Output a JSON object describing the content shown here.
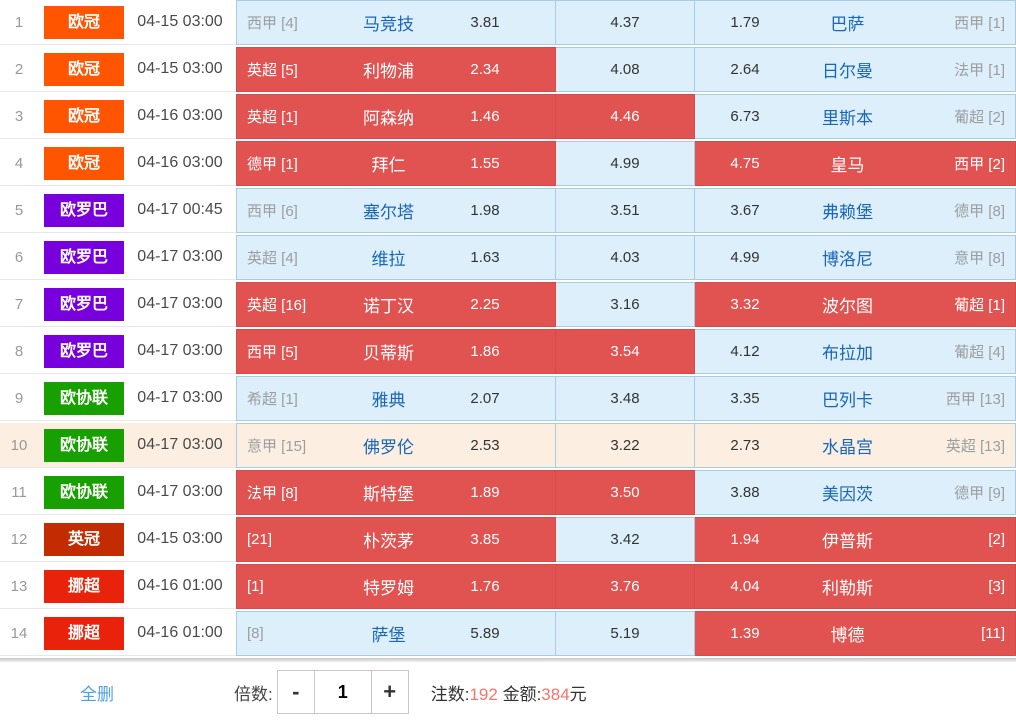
{
  "colors": {
    "leagues": {
      "欧冠": "#FF5400",
      "欧罗巴": "#7700DD",
      "欧协联": "#18A000",
      "英冠": "#C32B00",
      "挪超": "#E8220B"
    },
    "cell_default": "#DDEFFB",
    "cell_selected": "#E05351",
    "row_highlight": "#FCEFE2",
    "team_link_blue": "#1A66B8",
    "value_red": "#F5756B"
  },
  "rows": [
    {
      "num": "1",
      "league": "欧冠",
      "time": "04-15 03:00",
      "home_rank": "西甲 [4]",
      "home_team": "马竞技",
      "home_odds": "3.81",
      "draw_odds": "4.37",
      "away_odds": "1.79",
      "away_team": "巴萨",
      "away_rank": "西甲 [1]",
      "sel_home": false,
      "sel_draw": false,
      "sel_away": false,
      "highlight": false
    },
    {
      "num": "2",
      "league": "欧冠",
      "time": "04-15 03:00",
      "home_rank": "英超 [5]",
      "home_team": "利物浦",
      "home_odds": "2.34",
      "draw_odds": "4.08",
      "away_odds": "2.64",
      "away_team": "日尔曼",
      "away_rank": "法甲 [1]",
      "sel_home": true,
      "sel_draw": false,
      "sel_away": false,
      "highlight": false
    },
    {
      "num": "3",
      "league": "欧冠",
      "time": "04-16 03:00",
      "home_rank": "英超 [1]",
      "home_team": "阿森纳",
      "home_odds": "1.46",
      "draw_odds": "4.46",
      "away_odds": "6.73",
      "away_team": "里斯本",
      "away_rank": "葡超 [2]",
      "sel_home": true,
      "sel_draw": true,
      "sel_away": false,
      "highlight": false
    },
    {
      "num": "4",
      "league": "欧冠",
      "time": "04-16 03:00",
      "home_rank": "德甲 [1]",
      "home_team": "拜仁",
      "home_odds": "1.55",
      "draw_odds": "4.99",
      "away_odds": "4.75",
      "away_team": "皇马",
      "away_rank": "西甲 [2]",
      "sel_home": true,
      "sel_draw": false,
      "sel_away": true,
      "highlight": false
    },
    {
      "num": "5",
      "league": "欧罗巴",
      "time": "04-17 00:45",
      "home_rank": "西甲 [6]",
      "home_team": "塞尔塔",
      "home_odds": "1.98",
      "draw_odds": "3.51",
      "away_odds": "3.67",
      "away_team": "弗赖堡",
      "away_rank": "德甲 [8]",
      "sel_home": false,
      "sel_draw": false,
      "sel_away": false,
      "highlight": false
    },
    {
      "num": "6",
      "league": "欧罗巴",
      "time": "04-17 03:00",
      "home_rank": "英超 [4]",
      "home_team": "维拉",
      "home_odds": "1.63",
      "draw_odds": "4.03",
      "away_odds": "4.99",
      "away_team": "博洛尼",
      "away_rank": "意甲 [8]",
      "sel_home": false,
      "sel_draw": false,
      "sel_away": false,
      "highlight": false
    },
    {
      "num": "7",
      "league": "欧罗巴",
      "time": "04-17 03:00",
      "home_rank": "英超 [16]",
      "home_team": "诺丁汉",
      "home_odds": "2.25",
      "draw_odds": "3.16",
      "away_odds": "3.32",
      "away_team": "波尔图",
      "away_rank": "葡超 [1]",
      "sel_home": true,
      "sel_draw": false,
      "sel_away": true,
      "highlight": false
    },
    {
      "num": "8",
      "league": "欧罗巴",
      "time": "04-17 03:00",
      "home_rank": "西甲 [5]",
      "home_team": "贝蒂斯",
      "home_odds": "1.86",
      "draw_odds": "3.54",
      "away_odds": "4.12",
      "away_team": "布拉加",
      "away_rank": "葡超 [4]",
      "sel_home": true,
      "sel_draw": true,
      "sel_away": false,
      "highlight": false
    },
    {
      "num": "9",
      "league": "欧协联",
      "time": "04-17 03:00",
      "home_rank": "希超 [1]",
      "home_team": "雅典",
      "home_odds": "2.07",
      "draw_odds": "3.48",
      "away_odds": "3.35",
      "away_team": "巴列卡",
      "away_rank": "西甲 [13]",
      "sel_home": false,
      "sel_draw": false,
      "sel_away": false,
      "highlight": false
    },
    {
      "num": "10",
      "league": "欧协联",
      "time": "04-17 03:00",
      "home_rank": "意甲 [15]",
      "home_team": "佛罗伦",
      "home_odds": "2.53",
      "draw_odds": "3.22",
      "away_odds": "2.73",
      "away_team": "水晶宫",
      "away_rank": "英超 [13]",
      "sel_home": false,
      "sel_draw": false,
      "sel_away": false,
      "highlight": true
    },
    {
      "num": "11",
      "league": "欧协联",
      "time": "04-17 03:00",
      "home_rank": "法甲 [8]",
      "home_team": "斯特堡",
      "home_odds": "1.89",
      "draw_odds": "3.50",
      "away_odds": "3.88",
      "away_team": "美因茨",
      "away_rank": "德甲 [9]",
      "sel_home": true,
      "sel_draw": true,
      "sel_away": false,
      "highlight": false
    },
    {
      "num": "12",
      "league": "英冠",
      "time": "04-15 03:00",
      "home_rank": "[21]",
      "home_team": "朴茨茅",
      "home_odds": "3.85",
      "draw_odds": "3.42",
      "away_odds": "1.94",
      "away_team": "伊普斯",
      "away_rank": "[2]",
      "sel_home": true,
      "sel_draw": false,
      "sel_away": true,
      "highlight": false
    },
    {
      "num": "13",
      "league": "挪超",
      "time": "04-16 01:00",
      "home_rank": "[1]",
      "home_team": "特罗姆",
      "home_odds": "1.76",
      "draw_odds": "3.76",
      "away_odds": "4.04",
      "away_team": "利勒斯",
      "away_rank": "[3]",
      "sel_home": true,
      "sel_draw": true,
      "sel_away": true,
      "highlight": false
    },
    {
      "num": "14",
      "league": "挪超",
      "time": "04-16 01:00",
      "home_rank": "[8]",
      "home_team": "萨堡",
      "home_odds": "5.89",
      "draw_odds": "5.19",
      "away_odds": "1.39",
      "away_team": "博德",
      "away_rank": "[11]",
      "sel_home": false,
      "sel_draw": false,
      "sel_away": true,
      "highlight": false
    }
  ],
  "footer": {
    "delete_all": "全删",
    "multiplier_label": "倍数:",
    "minus": "-",
    "multiplier_value": "1",
    "plus": "+",
    "bets_label": "注数:",
    "bets_value": "192",
    "amount_label": " 金额:",
    "amount_value": "384",
    "amount_unit": "元"
  }
}
